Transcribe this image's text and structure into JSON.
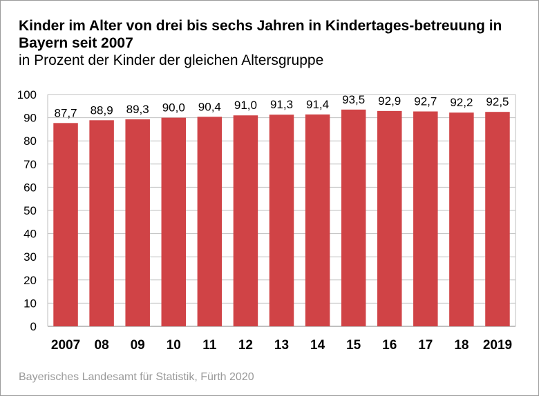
{
  "title": "Kinder im Alter von drei bis sechs Jahren in Kindertages-betreuung in Bayern seit 2007",
  "subtitle": "in Prozent der Kinder der gleichen Altersgruppe",
  "source": "Bayerisches Landesamt für Statistik, Fürth 2020",
  "colors": {
    "bar": "#d04346",
    "grid": "#bfbfbf",
    "text": "#000000",
    "source": "#9a9a9a"
  },
  "chart_data": {
    "type": "bar",
    "title": "Kinder im Alter von drei bis sechs Jahren in Kindertages-betreuung in Bayern seit 2007",
    "subtitle": "in Prozent der Kinder der gleichen Altersgruppe",
    "categories": [
      "2007",
      "08",
      "09",
      "10",
      "11",
      "12",
      "13",
      "14",
      "15",
      "16",
      "17",
      "18",
      "2019"
    ],
    "values": [
      87.7,
      88.9,
      89.3,
      90.0,
      90.4,
      91.0,
      91.3,
      91.4,
      93.5,
      92.9,
      92.7,
      92.2,
      92.5
    ],
    "value_labels": [
      "87,7",
      "88,9",
      "89,3",
      "90,0",
      "90,4",
      "91,0",
      "91,3",
      "91,4",
      "93,5",
      "92,9",
      "92,7",
      "92,2",
      "92,5"
    ],
    "y_ticks": [
      "0",
      "10",
      "20",
      "30",
      "40",
      "50",
      "60",
      "70",
      "80",
      "90",
      "100"
    ],
    "xlabel": "",
    "ylabel": "",
    "ylim": [
      0,
      100
    ],
    "grid": true,
    "legend": "none"
  }
}
